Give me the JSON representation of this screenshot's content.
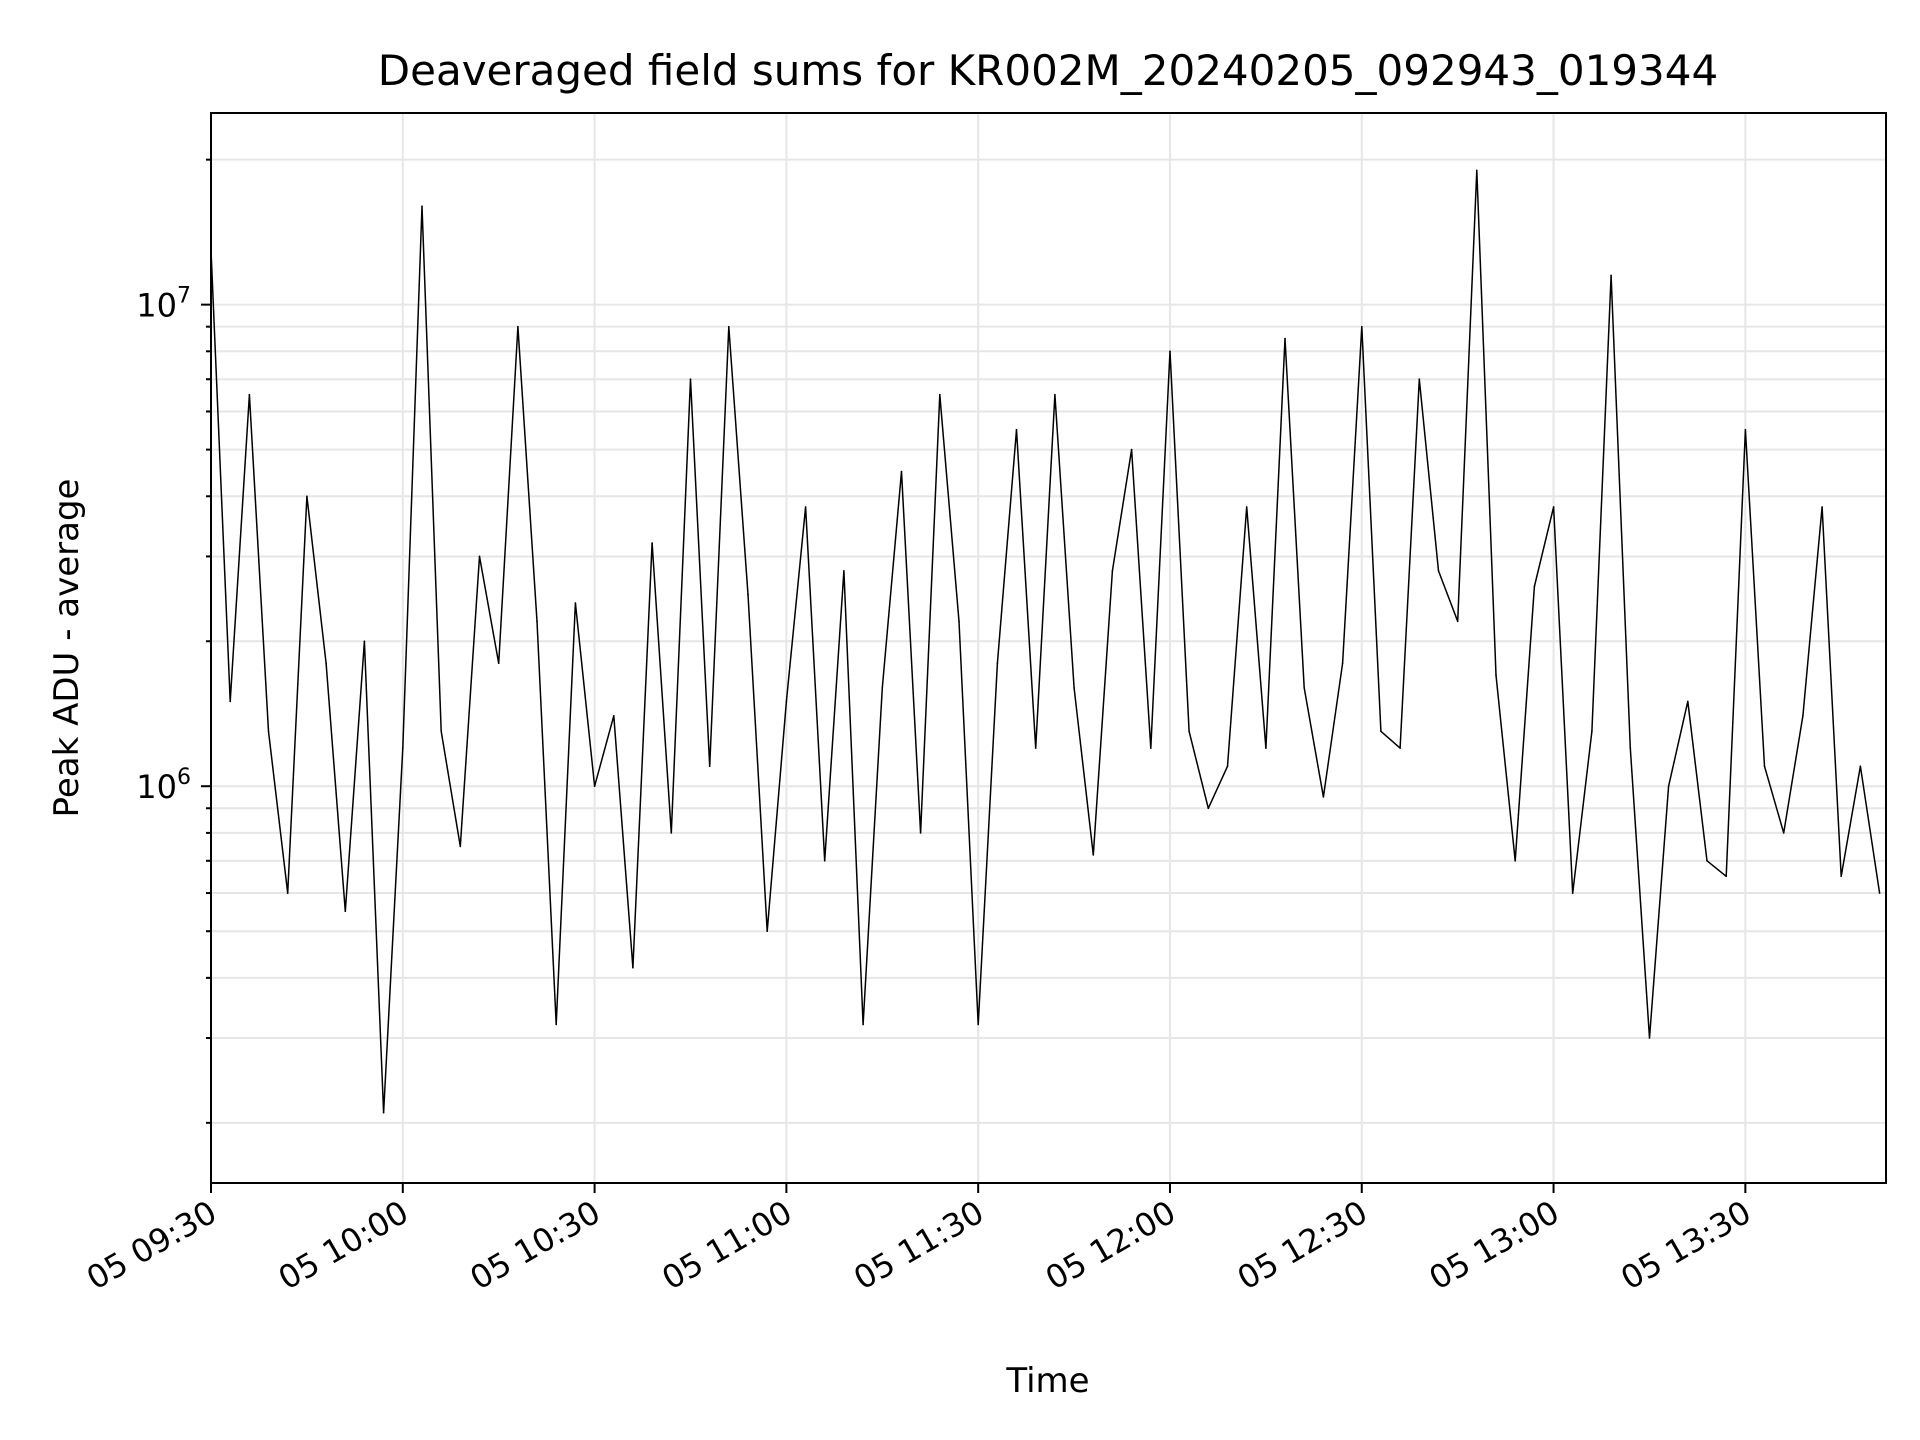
{
  "chart_data": {
    "type": "line",
    "title": "Deaveraged field sums for KR002M_20240205_092943_019344",
    "xlabel": "Time",
    "ylabel": "Peak ADU - average",
    "yscale": "log",
    "ylim": [
      150000,
      25000000
    ],
    "xlim": [
      "09:30",
      "13:52"
    ],
    "grid": true,
    "line_color": "#000000",
    "x_ticks": [
      "05 09:30",
      "05 10:00",
      "05 10:30",
      "05 11:00",
      "05 11:30",
      "05 12:00",
      "05 12:30",
      "05 13:00",
      "05 13:30"
    ],
    "y_ticks": [
      {
        "base": "10",
        "exp": "6",
        "value": 1000000
      },
      {
        "base": "10",
        "exp": "7",
        "value": 10000000
      }
    ],
    "series": [
      {
        "x": [
          "09:30",
          "09:33",
          "09:36",
          "09:39",
          "09:42",
          "09:45",
          "09:48",
          "09:51",
          "09:54",
          "09:57",
          "10:00",
          "10:03",
          "10:06",
          "10:09",
          "10:12",
          "10:15",
          "10:18",
          "10:21",
          "10:24",
          "10:27",
          "10:30",
          "10:33",
          "10:36",
          "10:39",
          "10:42",
          "10:45",
          "10:48",
          "10:51",
          "10:54",
          "10:57",
          "11:00",
          "11:03",
          "11:06",
          "11:09",
          "11:12",
          "11:15",
          "11:18",
          "11:21",
          "11:24",
          "11:27",
          "11:30",
          "11:33",
          "11:36",
          "11:39",
          "11:42",
          "11:45",
          "11:48",
          "11:51",
          "11:54",
          "11:57",
          "12:00",
          "12:03",
          "12:06",
          "12:09",
          "12:12",
          "12:15",
          "12:18",
          "12:21",
          "12:24",
          "12:27",
          "12:30",
          "12:33",
          "12:36",
          "12:39",
          "12:42",
          "12:45",
          "12:48",
          "12:51",
          "12:54",
          "12:57",
          "13:00",
          "13:03",
          "13:06",
          "13:09",
          "13:12",
          "13:15",
          "13:18",
          "13:21",
          "13:24",
          "13:27",
          "13:30",
          "13:33",
          "13:36",
          "13:39",
          "13:42",
          "13:45",
          "13:48",
          "13:51"
        ],
        "values": [
          13000000,
          1500000,
          6500000,
          1300000,
          600000,
          4000000,
          1800000,
          550000,
          2000000,
          210000,
          1200000,
          16000000,
          1300000,
          750000,
          3000000,
          1800000,
          9000000,
          2200000,
          320000,
          2400000,
          1000000,
          1400000,
          420000,
          3200000,
          800000,
          7000000,
          1100000,
          9000000,
          2500000,
          500000,
          1500000,
          3800000,
          700000,
          2800000,
          320000,
          1600000,
          4500000,
          800000,
          6500000,
          2200000,
          320000,
          1800000,
          5500000,
          1200000,
          6500000,
          1600000,
          720000,
          2800000,
          5000000,
          1200000,
          8000000,
          1300000,
          900000,
          1100000,
          3800000,
          1200000,
          8500000,
          1600000,
          950000,
          1800000,
          9000000,
          1300000,
          1200000,
          7000000,
          2800000,
          2200000,
          19000000,
          1700000,
          700000,
          2600000,
          3800000,
          600000,
          1300000,
          11500000,
          1200000,
          300000,
          1000000,
          1500000,
          700000,
          650000,
          5500000,
          1100000,
          800000,
          1400000,
          3800000,
          650000,
          1100000,
          600000
        ]
      }
    ]
  }
}
